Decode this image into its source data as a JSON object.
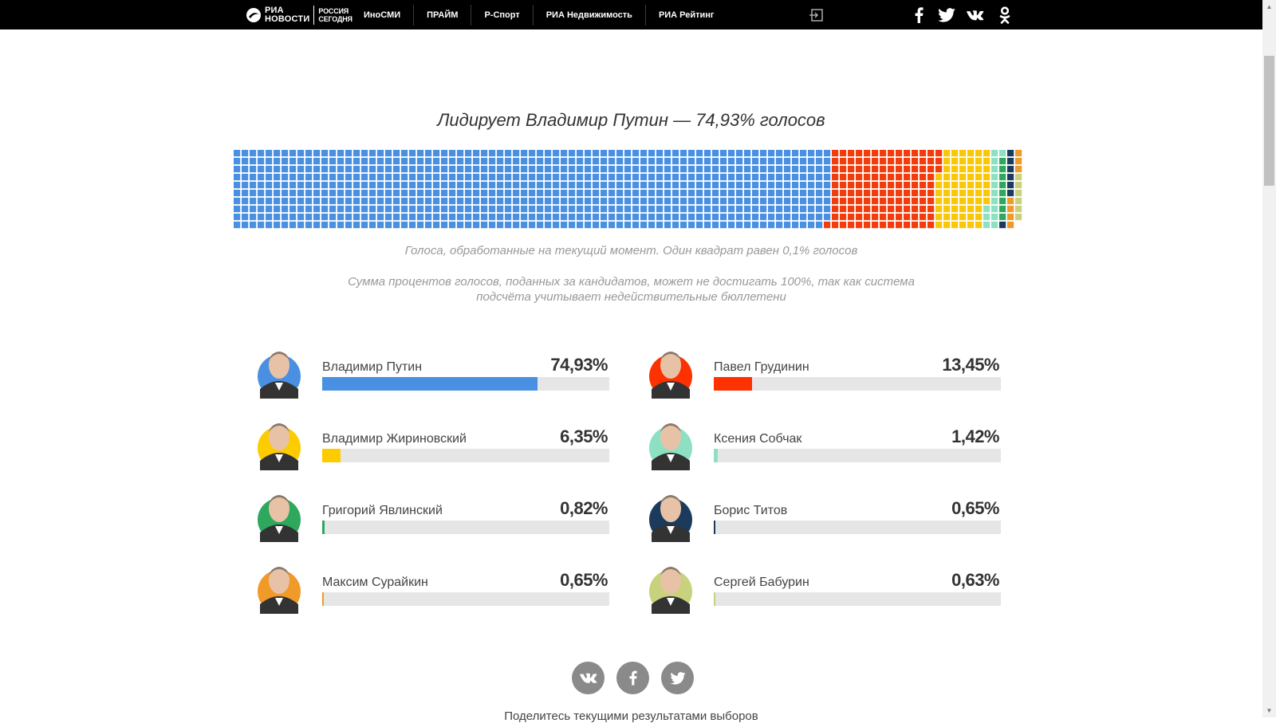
{
  "topbar": {
    "logo_ria": "РИА",
    "logo_novosti": "НОВОСТИ",
    "logo_rossiya": "РОССИЯ",
    "logo_segodnya": "СЕГОДНЯ",
    "nav": [
      "ИноСМИ",
      "ПРАЙМ",
      "Р-Спорт",
      "РИА Недвижимость",
      "РИА Рейтинг"
    ]
  },
  "headline": "Лидирует Владимир Путин — 74,93% голосов",
  "waffle": {
    "rows": 10,
    "segments": [
      {
        "candidate": "Владимир Путин",
        "squares": 749,
        "color": "#4a90e2"
      },
      {
        "candidate": "Павел Грудинин",
        "squares": 134,
        "color": "#f23c0c"
      },
      {
        "candidate": "Владимир Жириновский",
        "squares": 64,
        "color": "#f8c808"
      },
      {
        "candidate": "Ксения Собчак",
        "squares": 14,
        "color": "#8ee0c2"
      },
      {
        "candidate": "Григорий Явлинский",
        "squares": 8,
        "color": "#2da85c"
      },
      {
        "candidate": "Борис Титов",
        "squares": 7,
        "color": "#1c3a5c"
      },
      {
        "candidate": "Максим Сурайкин",
        "squares": 7,
        "color": "#f09a2a"
      },
      {
        "candidate": "Сергей Бабурин",
        "squares": 6,
        "color": "#c8d27c"
      }
    ]
  },
  "notes": {
    "note1": "Голоса, обработанные на текущий момент. Один квадрат равен 0,1% голосов",
    "note2": "Сумма процентов голосов, поданных за кандидатов, может не достигать 100%, так как система подсчёта учитывает недействительные бюллетени"
  },
  "candidates": [
    {
      "name": "Владимир Путин",
      "pct": "74,93%",
      "value": 74.93,
      "color": "#4a90e2"
    },
    {
      "name": "Павел Грудинин",
      "pct": "13,45%",
      "value": 13.45,
      "color": "#fe3100"
    },
    {
      "name": "Владимир Жириновский",
      "pct": "6,35%",
      "value": 6.35,
      "color": "#fccb00"
    },
    {
      "name": "Ксения Собчак",
      "pct": "1,42%",
      "value": 1.42,
      "color": "#8ee0c2"
    },
    {
      "name": "Григорий Явлинский",
      "pct": "0,82%",
      "value": 0.82,
      "color": "#2da85c"
    },
    {
      "name": "Борис Титов",
      "pct": "0,65%",
      "value": 0.65,
      "color": "#1c3a5c"
    },
    {
      "name": "Максим Сурайкин",
      "pct": "0,65%",
      "value": 0.65,
      "color": "#f09a2a"
    },
    {
      "name": "Сергей Бабурин",
      "pct": "0,63%",
      "value": 0.63,
      "color": "#c8d27c"
    }
  ],
  "share_text": "Поделитесь текущими результатами выборов"
}
